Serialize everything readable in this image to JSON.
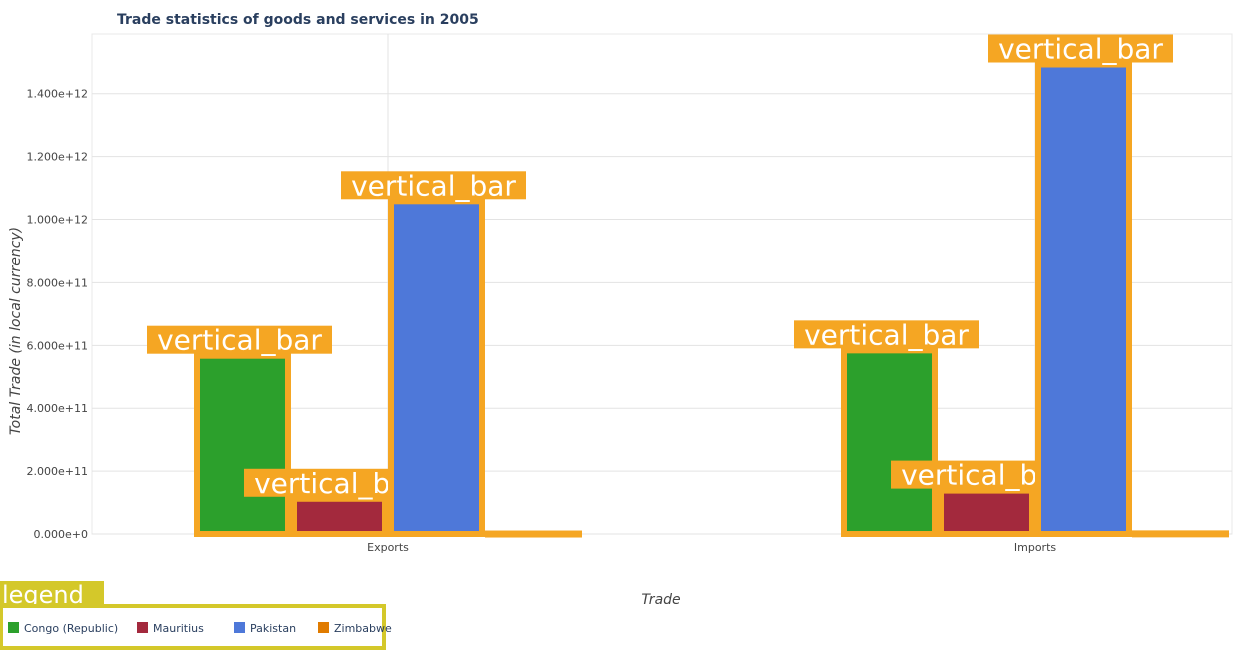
{
  "chart_data": {
    "type": "bar",
    "title": "Trade statistics of goods and services in 2005",
    "xlabel": "Trade",
    "ylabel": "Total Trade (in local currency)",
    "categories": [
      "Exports",
      "Imports"
    ],
    "series": [
      {
        "name": "Congo (Republic)",
        "color": "#2ca02c",
        "values": [
          567000000000,
          584000000000
        ]
      },
      {
        "name": "Mauritius",
        "color": "#a3293d",
        "values": [
          112000000000,
          138000000000
        ]
      },
      {
        "name": "Pakistan",
        "color": "#4e78d9",
        "values": [
          1058000000000,
          1493000000000
        ]
      },
      {
        "name": "Zimbabwe",
        "color": "#e07b00",
        "values": [
          1500000000,
          2000000000
        ]
      }
    ],
    "ylim": [
      0,
      1590000000000
    ],
    "yticks": [
      0,
      200000000000,
      400000000000,
      600000000000,
      800000000000,
      1000000000000,
      1200000000000,
      1400000000000
    ],
    "ytick_labels": [
      "0.000e+0",
      "2.000e+11",
      "4.000e+11",
      "6.000e+11",
      "8.000e+11",
      "1.000e+12",
      "1.200e+12",
      "1.400e+12"
    ],
    "grid": true,
    "legend_position": "bottom-left",
    "legend_title": "legend",
    "annotation_text": "vertical_bar",
    "annotation_box_color": "#f5a623",
    "bar_outline_color": "#f5a623",
    "legend_box_color": "#d4c82a"
  }
}
